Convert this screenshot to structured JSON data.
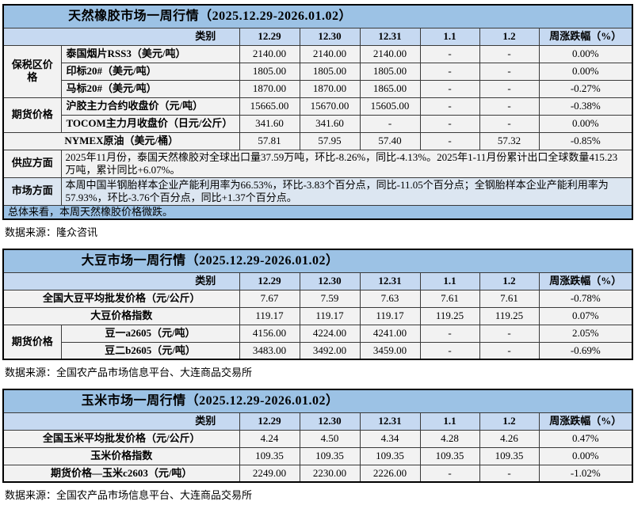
{
  "colors": {
    "title_bg": "#9CC2E5",
    "header_bg": "#C6D9F1",
    "row_bg": "#F2F2F2",
    "alt_blue_bg": "#DCE6F1",
    "summary_bg": "#9CC2E5",
    "border": "#000000"
  },
  "header": {
    "category": "类别",
    "dates": [
      "12.29",
      "12.30",
      "12.31",
      "1.1",
      "1.2"
    ],
    "change": "周涨跌幅（%）"
  },
  "rubber": {
    "title": "天然橡胶市场一周行情（2025.12.29-2026.01.02）",
    "groups": {
      "bonded": "保税区价格",
      "futures": "期货价格"
    },
    "rows": [
      {
        "label": "泰国烟片RSS3（美元/吨）",
        "values": [
          "2140.00",
          "2140.00",
          "2140.00",
          "-",
          "-"
        ],
        "change": "0.00%"
      },
      {
        "label": "印标20#（美元/吨）",
        "values": [
          "1805.00",
          "1805.00",
          "1805.00",
          "-",
          "-"
        ],
        "change": "0.00%"
      },
      {
        "label": "马标20#（美元/吨）",
        "values": [
          "1870.00",
          "1870.00",
          "1865.00",
          "-",
          "-"
        ],
        "change": "-0.27%"
      },
      {
        "label": "沪胶主力合约收盘价（元/吨）",
        "values": [
          "15665.00",
          "15670.00",
          "15605.00",
          "-",
          "-"
        ],
        "change": "-0.38%"
      },
      {
        "label": "TOCOM主力月收盘价（日元/公斤）",
        "values": [
          "341.60",
          "341.60",
          "-",
          "-",
          "-"
        ],
        "change": "0.00%"
      },
      {
        "label": "NYMEX原油（美元/桶）",
        "values": [
          "57.81",
          "57.95",
          "57.40",
          "-",
          "57.32"
        ],
        "change": "-0.85%"
      }
    ],
    "supply": {
      "label": "供应方面",
      "text": "2025年11月份，泰国天然橡胶对全球出口量37.59万吨，环比-8.26%，同比-4.13%。2025年1-11月份累计出口全球数量415.23万吨，累计同比+6.07%。"
    },
    "market": {
      "label": "市场方面",
      "text": "本周中国半钢胎样本企业产能利用率为66.53%，环比-3.83个百分点，同比-11.05个百分点；全钢胎样本企业产能利用率为57.93%，环比-3.76个百分点，同比+1.37个百分点。"
    },
    "summary": "总体来看，本周天然橡胶价格微跌。",
    "source": "数据来源：隆众咨讯"
  },
  "soybean": {
    "title": "大豆市场一周行情（2025.12.29-2026.01.02）",
    "groups": {
      "futures": "期货价格"
    },
    "rows": [
      {
        "label": "全国大豆平均批发价格（元/公斤）",
        "values": [
          "7.67",
          "7.59",
          "7.63",
          "7.61",
          "7.61"
        ],
        "change": "-0.78%"
      },
      {
        "label": "大豆价格指数",
        "values": [
          "119.17",
          "119.17",
          "119.17",
          "119.25",
          "119.25"
        ],
        "change": "0.07%"
      },
      {
        "label": "豆一a2605（元/吨）",
        "values": [
          "4156.00",
          "4224.00",
          "4241.00",
          "-",
          "-"
        ],
        "change": "2.05%"
      },
      {
        "label": "豆二b2605（元/吨）",
        "values": [
          "3483.00",
          "3492.00",
          "3459.00",
          "-",
          "-"
        ],
        "change": "-0.69%"
      }
    ],
    "source": "数据来源：全国农产品市场信息平台、大连商品交易所"
  },
  "corn": {
    "title": "玉米市场一周行情（2025.12.29-2026.01.02）",
    "rows": [
      {
        "label": "全国玉米平均批发价格（元/公斤）",
        "values": [
          "4.24",
          "4.50",
          "4.34",
          "4.28",
          "4.26"
        ],
        "change": "0.47%"
      },
      {
        "label": "玉米价格指数",
        "values": [
          "109.35",
          "109.35",
          "109.35",
          "109.35",
          "109.35"
        ],
        "change": "0.00%"
      },
      {
        "label": "期货价格—玉米c2603（元/吨）",
        "values": [
          "2249.00",
          "2230.00",
          "2226.00",
          "-",
          "-"
        ],
        "change": "-1.02%"
      }
    ],
    "source": "数据来源：全国农产品市场信息平台、大连商品交易所"
  }
}
